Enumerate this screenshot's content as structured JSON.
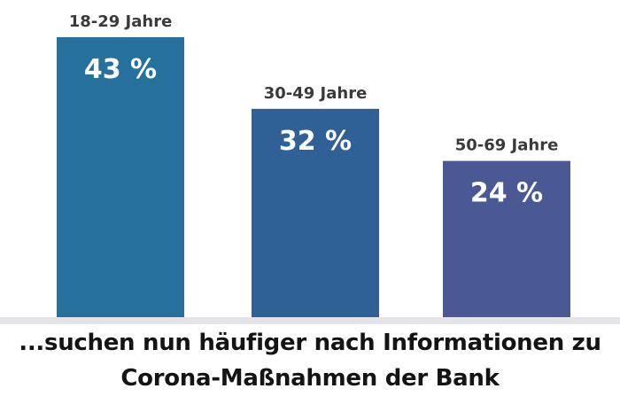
{
  "chart_data": {
    "type": "bar",
    "categories": [
      "18-29 Jahre",
      "30-49 Jahre",
      "50-69 Jahre"
    ],
    "values": [
      43,
      32,
      24
    ],
    "value_labels": [
      "43 %",
      "32 %",
      "24 %"
    ],
    "unit": "%",
    "colors": [
      "#25709d",
      "#2f6096",
      "#4a5993"
    ],
    "ylim": [
      0,
      50
    ],
    "grid": false,
    "legend": "none"
  },
  "caption": {
    "line1": "...suchen nun häufiger nach Informationen zu",
    "line2": "Corona-Maßnahmen der Bank"
  }
}
